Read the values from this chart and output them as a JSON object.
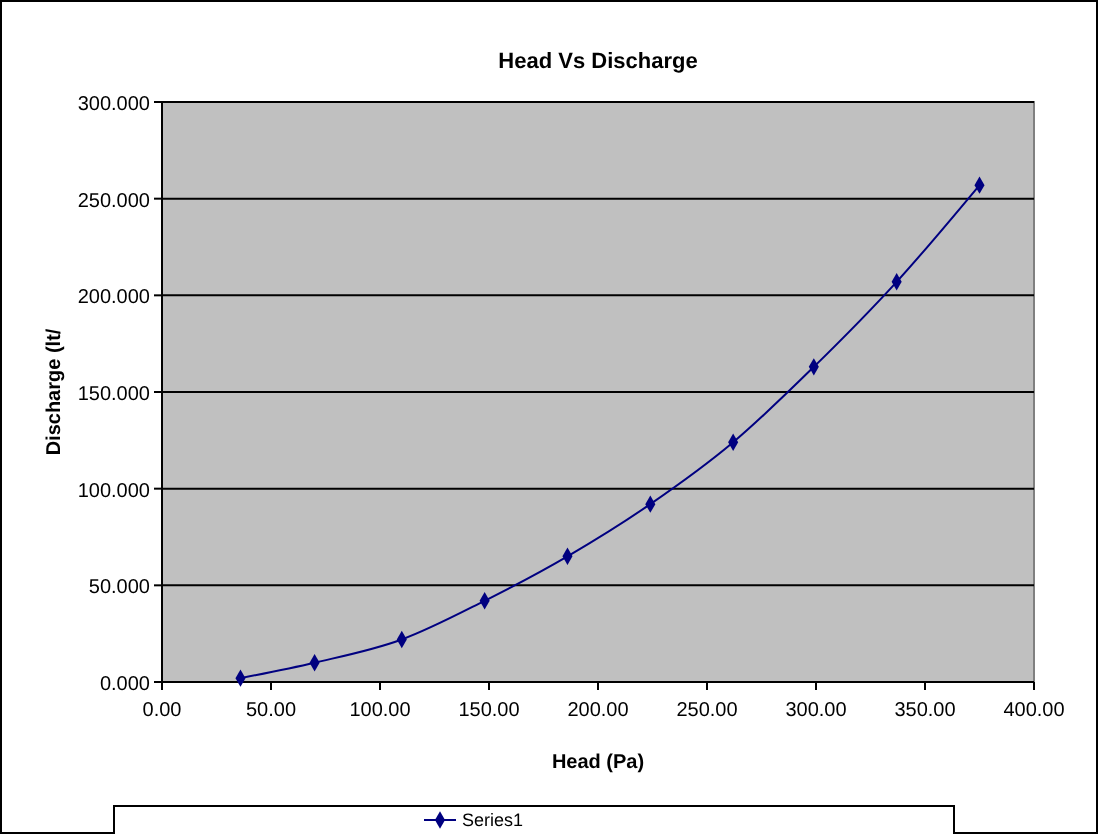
{
  "chart_data": {
    "type": "line",
    "title": "Head Vs Discharge",
    "xlabel": "Head (Pa)",
    "ylabel": "Discharge (lt/",
    "x": [
      36,
      70,
      110,
      148,
      186,
      224,
      262,
      299,
      337,
      375
    ],
    "series": [
      {
        "name": "Series1",
        "color": "#000080",
        "values": [
          2,
          10,
          22,
          42,
          65,
          92,
          124,
          163,
          207,
          257
        ]
      }
    ],
    "xlim": [
      0,
      400
    ],
    "xticks": [
      {
        "value": 0,
        "label": "0.00"
      },
      {
        "value": 50,
        "label": "50.00"
      },
      {
        "value": 100,
        "label": "100.00"
      },
      {
        "value": 150,
        "label": "150.00"
      },
      {
        "value": 200,
        "label": "200.00"
      },
      {
        "value": 250,
        "label": "250.00"
      },
      {
        "value": 300,
        "label": "300.00"
      },
      {
        "value": 350,
        "label": "350.00"
      },
      {
        "value": 400,
        "label": "400.00"
      }
    ],
    "ylim": [
      0,
      300
    ],
    "yticks": [
      {
        "value": 0,
        "label": "0.000"
      },
      {
        "value": 50,
        "label": "50.000"
      },
      {
        "value": 100,
        "label": "100.000"
      },
      {
        "value": 150,
        "label": "150.000"
      },
      {
        "value": 200,
        "label": "200.000"
      },
      {
        "value": 250,
        "label": "250.000"
      },
      {
        "value": 300,
        "label": "300.000"
      }
    ],
    "grid": "y",
    "legend": "bottom",
    "marker": "diamond",
    "line_style": "solid"
  }
}
